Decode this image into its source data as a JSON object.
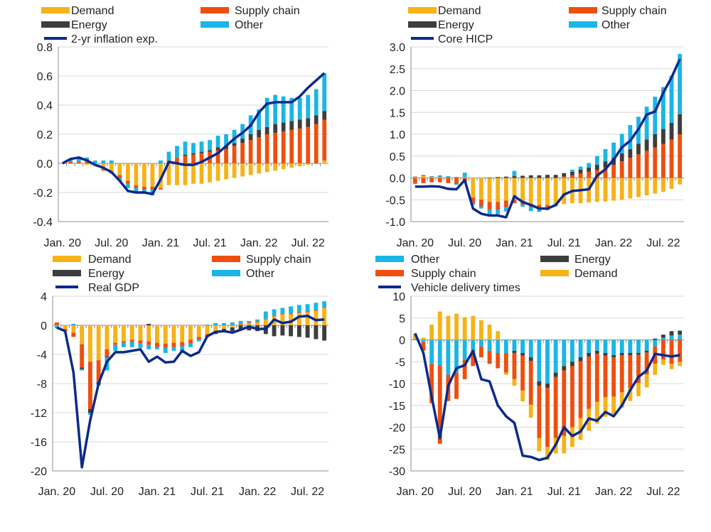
{
  "colors": {
    "demand": "#F7B217",
    "supply_chain": "#EE4E0E",
    "energy": "#3D3D3D",
    "other": "#19B6E6",
    "line": "#0A2A8C",
    "grid": "#D8D8D8",
    "axis": "#8C8C8C"
  },
  "chart_data": [
    {
      "type": "bar",
      "stacked": true,
      "title": "",
      "xlabel": "",
      "ylabel": "",
      "ylim": [
        -0.4,
        0.8
      ],
      "yticks": [
        -0.4,
        -0.2,
        0.0,
        0.2,
        0.4,
        0.6,
        0.8
      ],
      "ytick_labels": [
        "-0.4",
        "-0.2",
        "0.0",
        "0.2",
        "0.4",
        "0.6",
        "0.8"
      ],
      "xtick_labels": [
        "Jan. 20",
        "Jul. 20",
        "Jan. 21",
        "Jul. 21",
        "Jan. 22",
        "Jul. 22"
      ],
      "grid": "horizontal",
      "legend": [
        "Demand",
        "Supply chain",
        "Energy",
        "Other",
        "2-yr inflation exp."
      ],
      "months": 33,
      "series": [
        {
          "name": "Demand",
          "key": "demand",
          "values": [
            0,
            0,
            0,
            -0.01,
            -0.02,
            -0.04,
            -0.06,
            -0.08,
            -0.12,
            -0.15,
            -0.16,
            -0.16,
            -0.17,
            -0.15,
            -0.15,
            -0.15,
            -0.14,
            -0.14,
            -0.13,
            -0.12,
            -0.11,
            -0.1,
            -0.09,
            -0.08,
            -0.07,
            -0.06,
            -0.05,
            -0.04,
            -0.03,
            -0.02,
            -0.01,
            0,
            0.02
          ]
        },
        {
          "name": "Supply chain",
          "key": "supply_chain",
          "values": [
            0,
            0.01,
            0.01,
            0.01,
            0.0,
            -0.01,
            -0.01,
            -0.02,
            -0.02,
            -0.02,
            -0.02,
            -0.02,
            -0.01,
            0.02,
            0.04,
            0.05,
            0.06,
            0.07,
            0.08,
            0.09,
            0.1,
            0.12,
            0.14,
            0.16,
            0.18,
            0.2,
            0.21,
            0.22,
            0.23,
            0.24,
            0.25,
            0.27,
            0.28
          ]
        },
        {
          "name": "Energy",
          "key": "energy",
          "values": [
            0,
            0,
            0,
            0,
            0,
            0,
            0,
            0,
            0,
            0,
            0,
            0,
            0,
            0,
            0,
            0.01,
            0.01,
            0.01,
            0.01,
            0.02,
            0.02,
            0.02,
            0.03,
            0.04,
            0.05,
            0.05,
            0.06,
            0.06,
            0.06,
            0.06,
            0.06,
            0.06,
            0.06
          ]
        },
        {
          "name": "Other",
          "key": "other",
          "values": [
            0,
            0.02,
            0.03,
            0.03,
            0.02,
            0.02,
            0.02,
            -0.02,
            -0.03,
            -0.03,
            -0.03,
            -0.04,
            0.02,
            0.06,
            0.08,
            0.09,
            0.07,
            0.07,
            0.07,
            0.08,
            0.08,
            0.09,
            0.1,
            0.13,
            0.14,
            0.2,
            0.2,
            0.18,
            0.16,
            0.15,
            0.16,
            0.18,
            0.26
          ]
        }
      ],
      "line": {
        "name": "2-yr inflation exp.",
        "values": [
          0,
          0.03,
          0.04,
          0.02,
          -0.01,
          -0.03,
          -0.06,
          -0.12,
          -0.19,
          -0.2,
          -0.2,
          -0.21,
          -0.11,
          0.01,
          0,
          -0.01,
          -0.01,
          0.01,
          0.04,
          0.07,
          0.12,
          0.17,
          0.21,
          0.26,
          0.35,
          0.41,
          0.42,
          0.42,
          0.42,
          0.46,
          0.52,
          0.57,
          0.62
        ]
      }
    },
    {
      "type": "bar",
      "stacked": true,
      "title": "",
      "xlabel": "",
      "ylabel": "",
      "ylim": [
        -1.0,
        3.0
      ],
      "yticks": [
        -1.0,
        -0.5,
        0.0,
        0.5,
        1.0,
        1.5,
        2.0,
        2.5,
        3.0
      ],
      "ytick_labels": [
        "-1.0",
        "-0.5",
        "0.0",
        "0.5",
        "1.0",
        "1.5",
        "2.0",
        "2.5",
        "3.0"
      ],
      "xtick_labels": [
        "Jan. 20",
        "Jul. 20",
        "Jan. 21",
        "Jul. 21",
        "Jan. 22",
        "Jul. 22"
      ],
      "grid": "horizontal",
      "legend": [
        "Demand",
        "Supply chain",
        "Energy",
        "Other",
        "Core HICP"
      ],
      "months": 33,
      "series": [
        {
          "name": "Demand",
          "key": "demand",
          "values": [
            0.02,
            0.05,
            0.02,
            0.02,
            0.01,
            0.01,
            0.02,
            -0.45,
            -0.5,
            -0.55,
            -0.55,
            -0.52,
            -0.5,
            -0.55,
            -0.6,
            -0.62,
            -0.62,
            -0.6,
            -0.6,
            -0.58,
            -0.58,
            -0.56,
            -0.55,
            -0.54,
            -0.52,
            -0.5,
            -0.47,
            -0.44,
            -0.4,
            -0.36,
            -0.32,
            -0.25,
            -0.15
          ]
        },
        {
          "name": "Supply chain",
          "key": "supply_chain",
          "values": [
            -0.12,
            -0.12,
            -0.1,
            -0.1,
            -0.12,
            -0.14,
            -0.1,
            -0.12,
            -0.15,
            -0.18,
            -0.18,
            -0.15,
            -0.08,
            -0.06,
            -0.06,
            -0.06,
            -0.04,
            0.0,
            0.03,
            0.06,
            0.1,
            0.14,
            0.18,
            0.24,
            0.3,
            0.38,
            0.46,
            0.54,
            0.62,
            0.7,
            0.78,
            0.88,
            1.0
          ]
        },
        {
          "name": "Energy",
          "key": "energy",
          "values": [
            0.01,
            0.01,
            0.01,
            0.01,
            0.01,
            0.01,
            0.0,
            0.0,
            0.0,
            0.01,
            0.02,
            0.03,
            0.04,
            0.05,
            0.06,
            0.06,
            0.07,
            0.07,
            0.08,
            0.08,
            0.09,
            0.1,
            0.12,
            0.14,
            0.16,
            0.18,
            0.2,
            0.24,
            0.26,
            0.3,
            0.34,
            0.38,
            0.46
          ]
        },
        {
          "name": "Other",
          "key": "other",
          "values": [
            -0.02,
            0.01,
            0.01,
            0.03,
            0.02,
            -0.02,
            0.1,
            -0.05,
            -0.05,
            -0.1,
            -0.1,
            -0.1,
            0.12,
            -0.05,
            -0.1,
            -0.1,
            -0.08,
            -0.05,
            0.0,
            0.05,
            0.07,
            0.1,
            0.2,
            0.28,
            0.35,
            0.45,
            0.55,
            0.62,
            0.75,
            0.86,
            0.96,
            1.08,
            1.38
          ]
        }
      ],
      "line": {
        "name": "Core HICP",
        "values": [
          -0.2,
          -0.2,
          -0.19,
          -0.2,
          -0.25,
          -0.26,
          -0.05,
          -0.7,
          -0.82,
          -0.86,
          -0.86,
          -0.9,
          -0.42,
          -0.55,
          -0.62,
          -0.7,
          -0.7,
          -0.62,
          -0.38,
          -0.3,
          -0.28,
          -0.26,
          0.05,
          0.2,
          0.42,
          0.7,
          0.85,
          1.12,
          1.45,
          1.52,
          1.95,
          2.3,
          2.72
        ]
      }
    },
    {
      "type": "bar",
      "stacked": true,
      "title": "",
      "xlabel": "",
      "ylabel": "",
      "ylim": [
        -20,
        4
      ],
      "yticks": [
        -20,
        -16,
        -12,
        -8,
        -4,
        0,
        4
      ],
      "ytick_labels": [
        "-20",
        "-16",
        "-12",
        "-8",
        "-4",
        "0",
        "4"
      ],
      "xtick_labels": [
        "Jan. 20",
        "Jul. 20",
        "Jan. 21",
        "Jul. 21",
        "Jan. 22",
        "Jul. 22"
      ],
      "grid": "horizontal",
      "legend": [
        "Demand",
        "Supply chain",
        "Energy",
        "Other",
        "Real GDP"
      ],
      "months": 33,
      "series": [
        {
          "name": "Demand",
          "key": "demand",
          "values": [
            -0.1,
            -0.5,
            -1.0,
            -2.6,
            -5.0,
            -4.8,
            -3.3,
            -2.4,
            -2.2,
            -2.0,
            -2.1,
            -2.2,
            -2.4,
            -2.5,
            -2.4,
            -2.3,
            -2.0,
            -1.6,
            -1.2,
            -0.8,
            -0.5,
            -0.3,
            0.1,
            0.3,
            0.4,
            0.8,
            1.2,
            1.5,
            1.5,
            1.7,
            1.8,
            2.0,
            2.4
          ]
        },
        {
          "name": "Supply chain",
          "key": "supply_chain",
          "values": [
            0.4,
            -0.3,
            -0.6,
            -3.2,
            -6.5,
            -3.0,
            -1.0,
            -0.3,
            -0.2,
            -0.3,
            -0.4,
            -0.5,
            -0.6,
            -0.6,
            -0.6,
            -0.6,
            -0.5,
            -0.3,
            -0.2,
            -0.1,
            0,
            0,
            0.1,
            0.1,
            0.1,
            0.1,
            0.1,
            0.1,
            0.1,
            0.1,
            0.1,
            0.1,
            0.1
          ]
        },
        {
          "name": "Energy",
          "key": "energy",
          "values": [
            0,
            0,
            0,
            -0.2,
            -0.5,
            -0.3,
            -0.1,
            0,
            0,
            0,
            0,
            0.2,
            0,
            0,
            0,
            0,
            0,
            0,
            -0.2,
            -0.3,
            -0.4,
            -0.5,
            -0.6,
            -0.7,
            -0.8,
            -1.2,
            -1.5,
            -1.4,
            -1.5,
            -1.6,
            -1.7,
            -1.9,
            -2.1
          ]
        },
        {
          "name": "Other",
          "key": "other",
          "values": [
            -0.3,
            0,
            0.2,
            -0.2,
            -0.3,
            -0.2,
            -1.8,
            -0.8,
            -0.6,
            -0.7,
            -0.6,
            -0.6,
            -0.3,
            -0.7,
            -0.5,
            -0.9,
            -0.5,
            -0.3,
            0.1,
            0.3,
            0.3,
            0.4,
            0.4,
            0.2,
            0.3,
            1.0,
            0.9,
            0.8,
            1.0,
            1.0,
            1.0,
            1.0,
            0.8
          ]
        }
      ],
      "line": {
        "name": "Real GDP",
        "values": [
          -0.3,
          -0.8,
          -6.5,
          -19.5,
          -13.0,
          -8.0,
          -5.0,
          -3.7,
          -3.7,
          -3.5,
          -3.3,
          -5.0,
          -4.3,
          -5.1,
          -5.0,
          -3.5,
          -4.2,
          -3.7,
          -1.5,
          -0.9,
          -0.8,
          -1.0,
          -0.6,
          -0.2,
          -0.5,
          -0.5,
          0.8,
          0.3,
          0.5,
          1.2,
          1.3,
          0.7,
          0.8
        ]
      }
    },
    {
      "type": "bar",
      "stacked": true,
      "title": "",
      "xlabel": "",
      "ylabel": "",
      "ylim": [
        -30,
        10
      ],
      "yticks": [
        -30,
        -25,
        -20,
        -15,
        -10,
        -5,
        0,
        5,
        10
      ],
      "ytick_labels": [
        "-30",
        "-25",
        "-20",
        "-15",
        "-10",
        "-5",
        "0",
        "5",
        "10"
      ],
      "xtick_labels": [
        "Jan. 20",
        "Jul. 20",
        "Jan. 21",
        "Jul. 21",
        "Jan. 22",
        "Jul. 22"
      ],
      "grid": "horizontal",
      "legend": [
        "Other",
        "Energy",
        "Supply chain",
        "Demand",
        "Vehicle delivery times"
      ],
      "months": 33,
      "series": [
        {
          "name": "Other",
          "key": "other",
          "values": [
            0.2,
            -0.5,
            -5.5,
            -5.8,
            -8.0,
            -7.5,
            -4.5,
            -2.5,
            -1.5,
            -2.5,
            -3.0,
            -3.0,
            -2.5,
            -3.0,
            -4.0,
            -9.5,
            -10.0,
            -7.5,
            -6.0,
            -5.0,
            -4.0,
            -3.0,
            -2.5,
            -3.0,
            -3.5,
            -3.0,
            -3.0,
            -3.0,
            -2.5,
            -1.5,
            0.5,
            1.0,
            1.2
          ]
        },
        {
          "name": "Energy",
          "key": "energy",
          "values": [
            0,
            0,
            0,
            0,
            0,
            0,
            0,
            0,
            0,
            0,
            0,
            0,
            -0.5,
            -0.6,
            -0.8,
            -1.0,
            -1.0,
            -1.0,
            -1.0,
            -1.0,
            -0.9,
            -0.8,
            -0.7,
            -0.6,
            -0.5,
            -0.5,
            -0.5,
            -0.4,
            -0.4,
            0.3,
            0.7,
            1.0,
            0.9
          ]
        },
        {
          "name": "Supply chain",
          "key": "supply_chain",
          "values": [
            0,
            -2.0,
            -9.0,
            -18.0,
            -6.0,
            -6.0,
            -4.5,
            -3.5,
            -2.5,
            -3.0,
            -3.5,
            -4.5,
            -6.0,
            -8.0,
            -10.0,
            -12.0,
            -13.5,
            -14.0,
            -15.0,
            -14.0,
            -13.0,
            -12.0,
            -11.0,
            -9.5,
            -9.0,
            -8.5,
            -7.5,
            -6.5,
            -5.0,
            -4.0,
            -4.5,
            -5.5,
            -5.0
          ]
        },
        {
          "name": "Demand",
          "key": "demand",
          "values": [
            1.2,
            0.5,
            3.5,
            6.5,
            5.5,
            6.0,
            5.2,
            5.5,
            4.5,
            3.5,
            2.0,
            -0.5,
            -1.5,
            -2.5,
            -3.0,
            -3.0,
            -3.0,
            -3.5,
            -4.0,
            -4.5,
            -5.0,
            -5.0,
            -5.0,
            -4.5,
            -4.0,
            -3.5,
            -3.0,
            -3.0,
            -3.0,
            -2.5,
            -1.2,
            -1.2,
            -1.0
          ]
        }
      ],
      "line": {
        "name": "Vehicle delivery times",
        "values": [
          1.5,
          -3.0,
          -13.0,
          -22.5,
          -10.5,
          -6.5,
          -5.8,
          -2.5,
          -9.0,
          -9.5,
          -15.0,
          -17.5,
          -19.0,
          -26.5,
          -26.8,
          -27.5,
          -27.0,
          -24.0,
          -20.0,
          -22.0,
          -21.0,
          -18.0,
          -18.5,
          -16.5,
          -17.5,
          -15.0,
          -11.5,
          -8.5,
          -7.0,
          -3.2,
          -3.5,
          -3.8,
          -3.5
        ]
      }
    }
  ]
}
